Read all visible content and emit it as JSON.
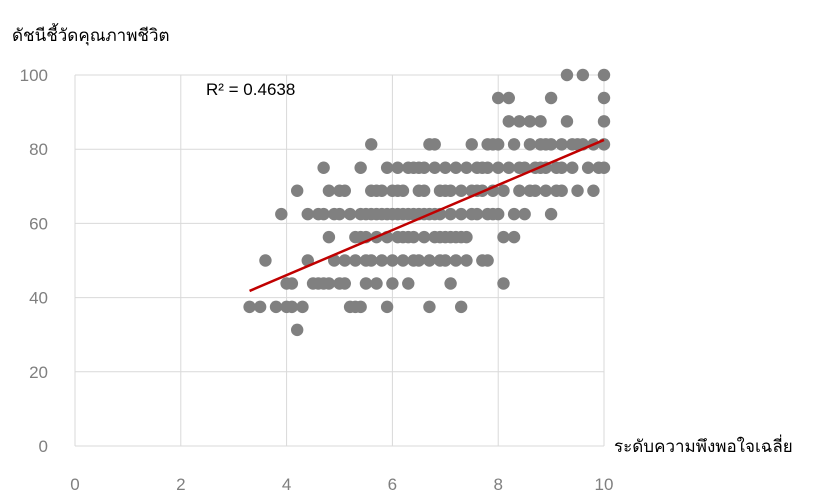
{
  "chart_data": {
    "type": "scatter",
    "title": "",
    "ylabel": "ดัชนีชี้วัดคุณภาพชีวิต",
    "xlabel": "ระดับความพึงพอใจเฉลี่ย",
    "xlim": [
      0,
      10
    ],
    "ylim": [
      0,
      100
    ],
    "x_ticks": [
      "0",
      "2",
      "4",
      "6",
      "8",
      "10"
    ],
    "y_ticks": [
      "0",
      "20",
      "40",
      "60",
      "80",
      "100"
    ],
    "grid": true,
    "r_squared_label": "R² = 0.4638",
    "trendline": {
      "x": [
        3.3,
        10.0
      ],
      "y": [
        41.8,
        82.5
      ],
      "color": "#c00000"
    },
    "marker_color": "#808080",
    "points": [
      [
        3.3,
        37.5
      ],
      [
        3.5,
        37.5
      ],
      [
        3.6,
        50
      ],
      [
        3.8,
        37.5
      ],
      [
        3.9,
        62.5
      ],
      [
        4.0,
        43.8
      ],
      [
        4.0,
        37.5
      ],
      [
        4.1,
        43.8
      ],
      [
        4.1,
        37.5
      ],
      [
        4.2,
        31.3
      ],
      [
        4.2,
        68.8
      ],
      [
        4.3,
        37.5
      ],
      [
        4.4,
        62.5
      ],
      [
        4.4,
        50
      ],
      [
        4.5,
        43.8
      ],
      [
        4.6,
        43.8
      ],
      [
        4.7,
        43.8
      ],
      [
        4.7,
        62.5
      ],
      [
        4.7,
        75
      ],
      [
        4.8,
        56.3
      ],
      [
        4.8,
        68.8
      ],
      [
        4.8,
        43.8
      ],
      [
        4.9,
        50
      ],
      [
        4.9,
        62.5
      ],
      [
        5.0,
        68.8
      ],
      [
        5.0,
        43.8
      ],
      [
        5.1,
        68.8
      ],
      [
        5.1,
        43.8
      ],
      [
        5.1,
        50
      ],
      [
        5.2,
        37.5
      ],
      [
        5.2,
        62.5
      ],
      [
        5.3,
        37.5
      ],
      [
        5.3,
        56.3
      ],
      [
        5.4,
        62.5
      ],
      [
        5.4,
        75
      ],
      [
        5.4,
        56.3
      ],
      [
        5.4,
        37.5
      ],
      [
        5.5,
        43.8
      ],
      [
        5.5,
        62.5
      ],
      [
        5.5,
        50
      ],
      [
        5.6,
        68.8
      ],
      [
        5.6,
        81.3
      ],
      [
        5.6,
        62.5
      ],
      [
        5.6,
        50
      ],
      [
        5.7,
        43.8
      ],
      [
        5.7,
        56.3
      ],
      [
        5.7,
        62.5
      ],
      [
        5.8,
        50
      ],
      [
        5.8,
        62.5
      ],
      [
        5.8,
        68.8
      ],
      [
        5.9,
        37.5
      ],
      [
        5.9,
        56.3
      ],
      [
        5.9,
        75
      ],
      [
        6.0,
        62.5
      ],
      [
        6.0,
        50
      ],
      [
        6.0,
        68.8
      ],
      [
        6.1,
        56.3
      ],
      [
        6.1,
        62.5
      ],
      [
        6.1,
        75
      ],
      [
        6.2,
        50
      ],
      [
        6.2,
        62.5
      ],
      [
        6.2,
        68.8
      ],
      [
        6.3,
        56.3
      ],
      [
        6.3,
        43.8
      ],
      [
        6.3,
        75
      ],
      [
        6.4,
        50
      ],
      [
        6.4,
        62.5
      ],
      [
        6.4,
        56.3
      ],
      [
        6.5,
        68.8
      ],
      [
        6.5,
        62.5
      ],
      [
        6.5,
        50
      ],
      [
        6.6,
        56.3
      ],
      [
        6.6,
        75
      ],
      [
        6.6,
        62.5
      ],
      [
        6.7,
        37.5
      ],
      [
        6.7,
        50
      ],
      [
        6.7,
        81.3
      ],
      [
        6.8,
        56.3
      ],
      [
        6.8,
        62.5
      ],
      [
        6.8,
        75
      ],
      [
        6.8,
        81.3
      ],
      [
        6.9,
        50
      ],
      [
        6.9,
        62.5
      ],
      [
        6.9,
        68.8
      ],
      [
        7.0,
        56.3
      ],
      [
        7.0,
        75
      ],
      [
        7.1,
        43.8
      ],
      [
        7.1,
        62.5
      ],
      [
        7.1,
        68.8
      ],
      [
        7.2,
        50
      ],
      [
        7.2,
        56.3
      ],
      [
        7.2,
        75
      ],
      [
        7.3,
        37.5
      ],
      [
        7.3,
        62.5
      ],
      [
        7.3,
        68.8
      ],
      [
        7.4,
        56.3
      ],
      [
        7.4,
        75
      ],
      [
        7.4,
        50
      ],
      [
        7.5,
        62.5
      ],
      [
        7.5,
        68.8
      ],
      [
        7.6,
        75
      ],
      [
        7.6,
        62.5
      ],
      [
        7.7,
        50
      ],
      [
        7.7,
        68.8
      ],
      [
        7.8,
        62.5
      ],
      [
        7.8,
        75
      ],
      [
        7.8,
        81.3
      ],
      [
        7.8,
        50
      ],
      [
        7.9,
        68.8
      ],
      [
        7.9,
        62.5
      ],
      [
        8.0,
        75
      ],
      [
        8.0,
        81.3
      ],
      [
        8.0,
        62.5
      ],
      [
        8.0,
        93.8
      ],
      [
        8.1,
        43.8
      ],
      [
        8.1,
        68.8
      ],
      [
        8.2,
        75
      ],
      [
        8.2,
        87.5
      ],
      [
        8.2,
        93.8
      ],
      [
        8.3,
        62.5
      ],
      [
        8.3,
        56.3
      ],
      [
        8.3,
        81.3
      ],
      [
        8.4,
        87.5
      ],
      [
        8.4,
        68.8
      ],
      [
        8.5,
        75
      ],
      [
        8.5,
        62.5
      ],
      [
        8.6,
        81.3
      ],
      [
        8.6,
        87.5
      ],
      [
        8.7,
        68.8
      ],
      [
        8.7,
        75
      ],
      [
        8.8,
        81.3
      ],
      [
        8.8,
        87.5
      ],
      [
        8.9,
        68.8
      ],
      [
        8.9,
        75
      ],
      [
        9.0,
        62.5
      ],
      [
        9.0,
        81.3
      ],
      [
        9.0,
        93.8
      ],
      [
        9.1,
        75
      ],
      [
        9.1,
        68.8
      ],
      [
        9.2,
        81.3
      ],
      [
        9.2,
        75
      ],
      [
        9.3,
        100
      ],
      [
        9.3,
        87.5
      ],
      [
        9.4,
        75
      ],
      [
        9.4,
        81.3
      ],
      [
        9.5,
        68.8
      ],
      [
        9.6,
        100
      ],
      [
        9.6,
        81.3
      ],
      [
        9.7,
        75
      ],
      [
        9.8,
        68.8
      ],
      [
        9.8,
        81.3
      ],
      [
        9.9,
        75
      ],
      [
        10.0,
        100
      ],
      [
        10.0,
        93.8
      ],
      [
        10.0,
        87.5
      ],
      [
        10.0,
        81.3
      ],
      [
        10.0,
        75
      ],
      [
        6.1,
        68.8
      ],
      [
        6.5,
        75
      ],
      [
        7.0,
        50
      ],
      [
        7.5,
        81.3
      ],
      [
        5.3,
        50
      ],
      [
        6.0,
        43.8
      ],
      [
        5.9,
        62.5
      ],
      [
        7.3,
        56.3
      ],
      [
        8.4,
        75
      ],
      [
        8.9,
        81.3
      ],
      [
        6.9,
        56.3
      ],
      [
        7.6,
        68.8
      ],
      [
        5.7,
        68.8
      ],
      [
        6.3,
        62.5
      ],
      [
        7.0,
        68.8
      ],
      [
        8.1,
        56.3
      ],
      [
        8.6,
        68.8
      ],
      [
        9.2,
        68.8
      ],
      [
        4.6,
        62.5
      ],
      [
        5.0,
        62.5
      ],
      [
        6.2,
        56.3
      ],
      [
        6.6,
        68.8
      ],
      [
        7.7,
        75
      ],
      [
        8.8,
        75
      ],
      [
        9.5,
        81.3
      ],
      [
        6.4,
        75
      ],
      [
        7.1,
        56.3
      ],
      [
        7.9,
        81.3
      ],
      [
        5.5,
        56.3
      ],
      [
        6.7,
        62.5
      ]
    ]
  }
}
